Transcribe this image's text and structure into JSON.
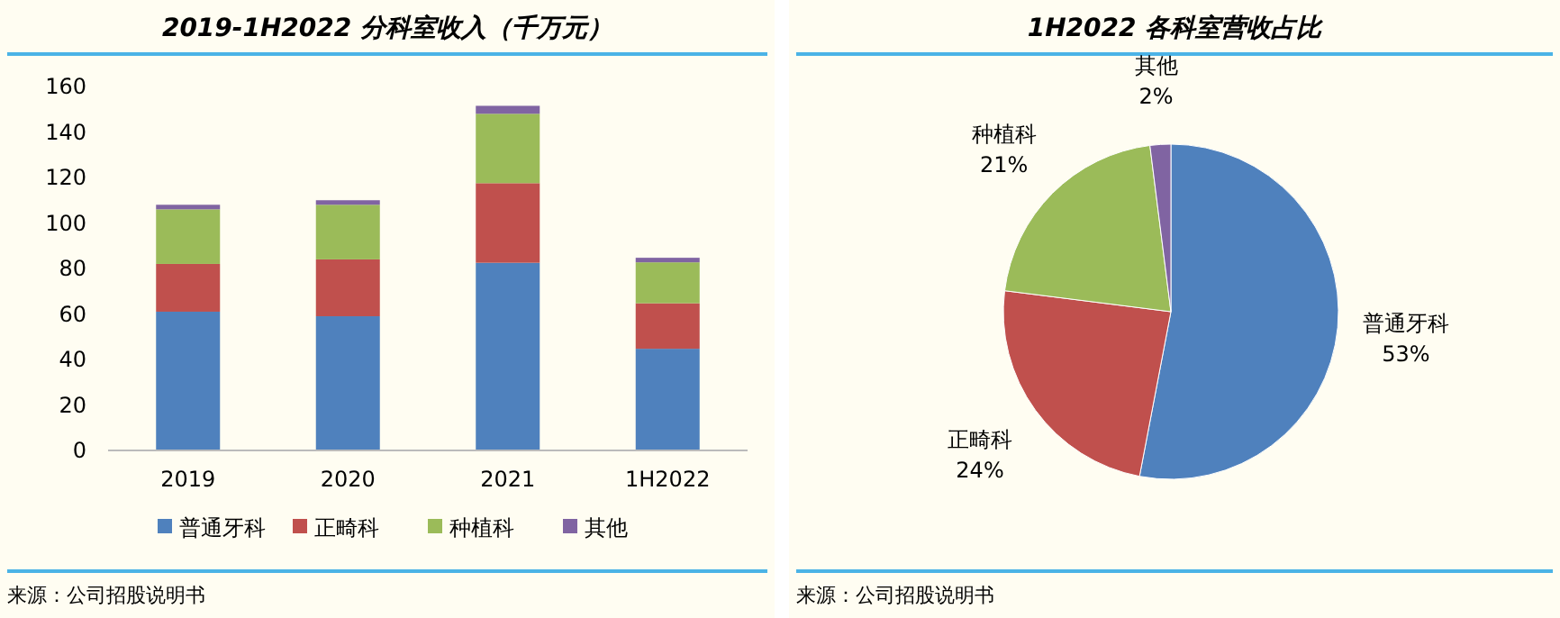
{
  "chart_data": [
    {
      "type": "bar",
      "title": "2019-1H2022 分科室收入（千万元）",
      "categories": [
        "2019",
        "2020",
        "2021",
        "1H2022"
      ],
      "stacked": true,
      "ylim": [
        0,
        160
      ],
      "yticks": [
        0,
        20,
        40,
        60,
        80,
        100,
        120,
        140,
        160
      ],
      "legend": "bottom",
      "series": [
        {
          "name": "普通牙科",
          "color": "#4f81bd",
          "values": [
            61,
            59,
            82.5,
            44.7
          ]
        },
        {
          "name": "正畸科",
          "color": "#c0504d",
          "values": [
            21,
            25,
            35,
            20
          ]
        },
        {
          "name": "种植科",
          "color": "#9bbb59",
          "values": [
            24,
            24,
            30.5,
            18
          ]
        },
        {
          "name": "其他",
          "color": "#8064a2",
          "values": [
            2,
            2,
            3.5,
            2
          ]
        }
      ],
      "annotations": [
        "来源：公司招股说明书"
      ]
    },
    {
      "type": "pie",
      "title": "1H2022 各科室营收占比",
      "categories": [
        "普通牙科",
        "正畸科",
        "种植科",
        "其他"
      ],
      "values": [
        53,
        24,
        21,
        2
      ],
      "colors": [
        "#4f81bd",
        "#c0504d",
        "#9bbb59",
        "#8064a2"
      ],
      "value_labels": [
        "53%",
        "24%",
        "21%",
        "2%"
      ],
      "annotations": [
        "来源：公司招股说明书"
      ]
    }
  ]
}
